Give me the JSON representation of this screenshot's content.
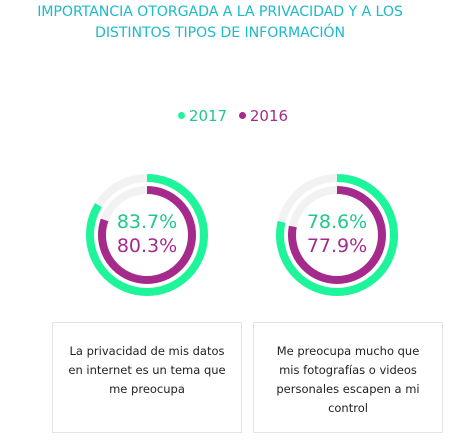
{
  "title": "IMPORTANCIA OTORGADA A LA PRIVACIDAD Y A LOS DISTINTOS TIPOS DE INFORMACIÓN",
  "colors": {
    "y2017": "#1ef59b",
    "y2016": "#a42b8b",
    "track": "#f2f2f2",
    "title": "#1fb9c9"
  },
  "legend": {
    "s2017": "2017",
    "s2016": "2016"
  },
  "chart_data": [
    {
      "type": "pie",
      "subtype": "concentric-donut",
      "title": "",
      "caption": "La privacidad de mis datos en internet es un tema que me preocupa",
      "series": [
        {
          "name": "2017",
          "value": 83.7,
          "label": "83.7%"
        },
        {
          "name": "2016",
          "value": 80.3,
          "label": "80.3%"
        }
      ]
    },
    {
      "type": "pie",
      "subtype": "concentric-donut",
      "title": "",
      "caption": "Me preocupa mucho que mis fotografías o videos personales escapen a mi control",
      "series": [
        {
          "name": "2017",
          "value": 78.6,
          "label": "78.6%"
        },
        {
          "name": "2016",
          "value": 77.9,
          "label": "77.9%"
        }
      ]
    }
  ]
}
